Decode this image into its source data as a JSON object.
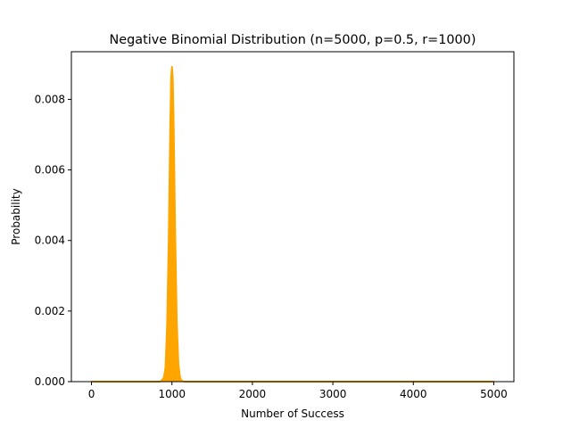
{
  "chart_data": {
    "type": "area",
    "title": "Negative Binomial Distribution (n=5000, p=0.5, r=1000)",
    "xlabel": "Number of Success",
    "ylabel": "Probability",
    "xlim": [
      -250,
      5250
    ],
    "ylim": [
      0,
      0.00935
    ],
    "xticks": [
      0,
      1000,
      2000,
      3000,
      4000,
      5000
    ],
    "xtick_labels": [
      "0",
      "1000",
      "2000",
      "3000",
      "4000",
      "5000"
    ],
    "yticks": [
      0,
      0.002,
      0.004,
      0.006,
      0.008
    ],
    "ytick_labels": [
      "0.000",
      "0.002",
      "0.004",
      "0.006",
      "0.008"
    ],
    "grid": false,
    "series": [
      {
        "color": "#ffa500",
        "x": [
          0,
          850,
          880,
          900,
          920,
          940,
          960,
          980,
          990,
          1000,
          1010,
          1020,
          1040,
          1060,
          1080,
          1100,
          1120,
          1150,
          1200,
          5000
        ],
        "values": [
          0,
          0.0,
          5e-05,
          0.00012,
          0.0004,
          0.0016,
          0.004,
          0.0074,
          0.0086,
          0.00892,
          0.0086,
          0.0075,
          0.0042,
          0.0017,
          0.0005,
          0.00012,
          3e-05,
          0.0,
          0,
          0
        ]
      }
    ]
  }
}
